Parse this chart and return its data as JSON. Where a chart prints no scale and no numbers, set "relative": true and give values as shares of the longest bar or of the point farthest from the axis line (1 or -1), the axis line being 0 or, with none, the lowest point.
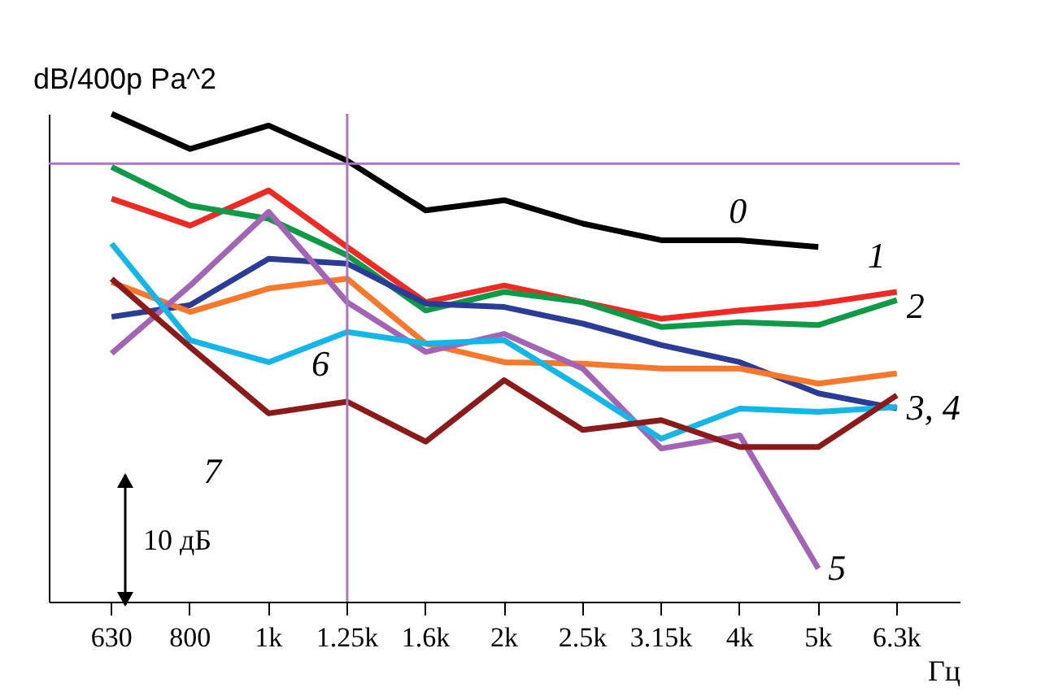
{
  "chart_data": {
    "type": "line",
    "relative": true,
    "ylabel": "dB/400p Pa^2",
    "xlabel": "Гц",
    "categories": [
      "630",
      "800",
      "1k",
      "1.25k",
      "1.6k",
      "2k",
      "2.5k",
      "3.15k",
      "4k",
      "5k",
      "6.3k"
    ],
    "series": [
      {
        "color": "#000000",
        "values": [
          1.0,
          0.928,
          0.976,
          0.904,
          0.802,
          0.823,
          0.775,
          0.741,
          0.741,
          0.727,
          null
        ]
      },
      {
        "color": "#ee2a24",
        "values": [
          0.826,
          0.771,
          0.843,
          0.727,
          0.614,
          0.648,
          0.614,
          0.58,
          0.597,
          0.611,
          0.635
        ]
      },
      {
        "color": "#0f9a48",
        "values": [
          0.891,
          0.812,
          0.785,
          0.71,
          0.597,
          0.635,
          0.614,
          0.563,
          0.573,
          0.567,
          0.618
        ]
      },
      {
        "color": "#2a3c96",
        "values": [
          0.584,
          0.608,
          0.703,
          0.693,
          0.611,
          0.604,
          0.57,
          0.526,
          0.491,
          0.427,
          0.396
        ]
      },
      {
        "color": "#f7782a",
        "values": [
          0.655,
          0.594,
          0.642,
          0.662,
          0.529,
          0.491,
          0.488,
          0.478,
          0.478,
          0.447,
          0.468
        ]
      },
      {
        "color": "#a265b5",
        "values": [
          0.509,
          0.648,
          0.799,
          0.614,
          0.512,
          0.549,
          0.478,
          0.314,
          0.341,
          0.068,
          null
        ]
      },
      {
        "color": "#14b6e8",
        "values": [
          0.734,
          0.536,
          0.491,
          0.553,
          0.529,
          0.536,
          0.437,
          0.334,
          0.396,
          0.389,
          0.399
        ]
      },
      {
        "color": "#8b1a1a",
        "values": [
          0.662,
          0.522,
          0.386,
          0.41,
          0.328,
          0.454,
          0.352,
          0.372,
          0.317,
          0.317,
          0.423
        ]
      }
    ],
    "ref_lines": [
      {
        "axis": "x",
        "value": "1.25k",
        "color": "#a678c0"
      },
      {
        "axis": "y",
        "value": 0.898,
        "color": "#a678c0"
      }
    ],
    "annotations": [
      {
        "text": "0",
        "x": "5k",
        "y": 0.727
      },
      {
        "text": "1",
        "x": "6.3k",
        "y": 0.635
      },
      {
        "text": "2",
        "x": "6.3k",
        "y": 0.618
      },
      {
        "text": "3, 4",
        "x": "6.3k",
        "y": 0.396
      },
      {
        "text": "5",
        "x": "5k",
        "y": 0.068
      },
      {
        "text": "6",
        "x": "1.25k",
        "y": 0.553
      },
      {
        "text": "7",
        "x": "1k",
        "y": 0.386
      },
      "10 дБ"
    ],
    "legend": false
  }
}
